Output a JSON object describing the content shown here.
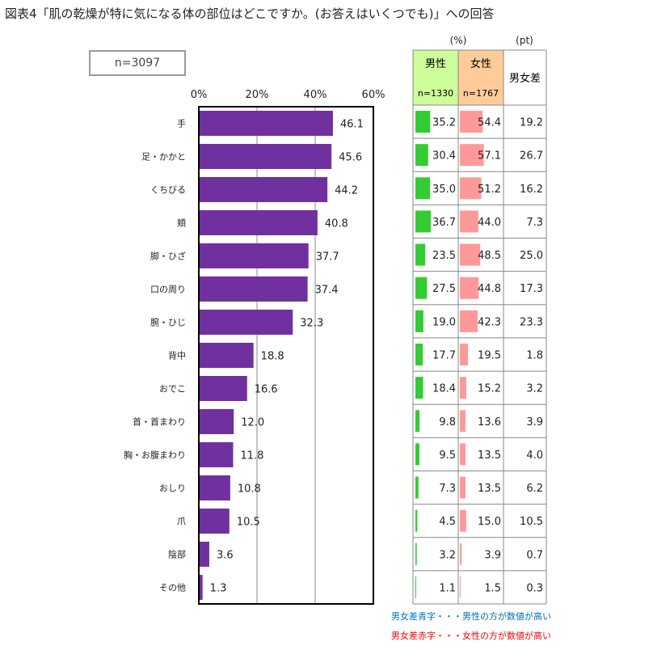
{
  "title": "図表4「肌の乾燥が特に気になる体の部位はどこですか。(お答えはいくつでも)」への回答",
  "sample_size": "n=3097",
  "chart_data": {
    "type": "bar",
    "orientation": "horizontal",
    "categories": [
      "手",
      "足・かかと",
      "くちびる",
      "頬",
      "脚・ひざ",
      "口の周り",
      "腕・ひじ",
      "背中",
      "おでこ",
      "首・首まわり",
      "胸・お腹まわり",
      "おしり",
      "爪",
      "陰部",
      "その他"
    ],
    "values": [
      46.1,
      45.6,
      44.2,
      40.8,
      37.7,
      37.4,
      32.3,
      18.8,
      16.6,
      12.0,
      11.8,
      10.8,
      10.5,
      3.6,
      1.3
    ],
    "xlim": [
      0,
      60
    ],
    "xticks": [
      "0%",
      "20%",
      "40%",
      "60%"
    ],
    "grid": true,
    "bar_color": "#7030A0"
  },
  "table": {
    "unit_pct": "(%)",
    "unit_pt": "(pt)",
    "male_label": "男性",
    "male_n": "n=1330",
    "female_label": "女性",
    "female_n": "n=1767",
    "diff_label": "男女差",
    "male_values": [
      35.2,
      30.4,
      35.0,
      36.7,
      23.5,
      27.5,
      19.0,
      17.7,
      18.4,
      9.8,
      9.5,
      7.3,
      4.5,
      3.2,
      1.1
    ],
    "female_values": [
      54.4,
      57.1,
      51.2,
      44.0,
      48.5,
      44.8,
      42.3,
      19.5,
      15.2,
      13.6,
      13.5,
      13.5,
      15.0,
      3.9,
      1.5
    ],
    "diff_values": [
      "19.2",
      "26.7",
      "16.2",
      "7.3",
      "25.0",
      "17.3",
      "23.3",
      "1.8",
      "3.2",
      "3.9",
      "4.0",
      "6.2",
      "10.5",
      "0.7",
      "0.3"
    ],
    "diff_higher": [
      "female",
      "female",
      "female",
      "female",
      "female",
      "female",
      "female",
      "female",
      "male",
      "female",
      "female",
      "female",
      "female",
      "female",
      "female"
    ],
    "colors": {
      "male_header": "#CCFF99",
      "female_header": "#FFCC99",
      "male_bar": "#33CC33",
      "female_bar": "#FF9999",
      "diff_male": "#0070C0",
      "diff_female": "#FF0000"
    }
  },
  "legend": {
    "blue_note": "男女差青字・・・男性の方が数値が高い",
    "red_note": "男女差赤字・・・女性の方が数値が高い"
  }
}
